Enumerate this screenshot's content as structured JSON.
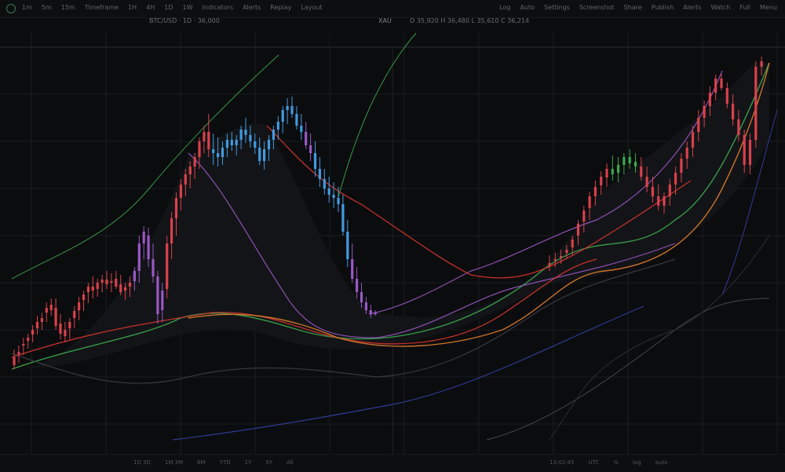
{
  "toolbar": {
    "left_items": [
      "1m",
      "5m",
      "15m",
      "Timeframe",
      "1H",
      "4H",
      "1D",
      "1W",
      "Indicators",
      "Alerts",
      "Replay",
      "Layout"
    ],
    "right_items": [
      "Log",
      "Auto",
      "Settings",
      "Screenshot",
      "Share",
      "Publish",
      "Alerts",
      "Watch",
      "Full",
      "Menu"
    ]
  },
  "header": {
    "symbol": "BTC/USD · 1D · 36,000",
    "ticker": "XAU",
    "info": "O 35,920  H 36,480  L 35,610  C 36,214"
  },
  "bottom_bar": {
    "left_items": [
      "1D 5D",
      "1M 3M",
      "6M",
      "YTD",
      "1Y",
      "5Y",
      "All"
    ],
    "right_items": [
      "13:02:45",
      "UTC",
      "%",
      "log",
      "auto"
    ]
  },
  "colors": {
    "up": "#d9414b",
    "down": "#3f9be0",
    "purple": "#9a58c6",
    "green": "#3aa84e",
    "orange": "#e07d2a",
    "red_ma": "#d8352f",
    "blue_band": "#3440a4",
    "grid": "#1a1c20"
  },
  "chart_data": {
    "type": "line",
    "candles": [
      [
        0,
        455,
        470,
        445,
        465,
        "up"
      ],
      [
        1,
        448,
        462,
        440,
        452,
        "up"
      ],
      [
        2,
        440,
        452,
        430,
        438,
        "up"
      ],
      [
        3,
        430,
        444,
        425,
        434,
        "up"
      ],
      [
        4,
        420,
        436,
        414,
        426,
        "up"
      ],
      [
        5,
        410,
        426,
        402,
        418,
        "up"
      ],
      [
        6,
        405,
        420,
        398,
        410,
        "up"
      ],
      [
        7,
        398,
        410,
        385,
        392,
        "up"
      ],
      [
        8,
        388,
        402,
        380,
        395,
        "up"
      ],
      [
        9,
        392,
        420,
        380,
        415,
        "up"
      ],
      [
        10,
        412,
        432,
        400,
        425,
        "up"
      ],
      [
        11,
        420,
        436,
        410,
        428,
        "up"
      ],
      [
        12,
        418,
        432,
        405,
        410,
        "up"
      ],
      [
        13,
        405,
        418,
        390,
        396,
        "up"
      ],
      [
        14,
        395,
        408,
        378,
        385,
        "up"
      ],
      [
        15,
        382,
        396,
        370,
        375,
        "up"
      ],
      [
        16,
        372,
        386,
        360,
        365,
        "up"
      ],
      [
        17,
        365,
        380,
        352,
        370,
        "up"
      ],
      [
        18,
        368,
        378,
        355,
        360,
        "up"
      ],
      [
        19,
        360,
        372,
        350,
        356,
        "up"
      ],
      [
        20,
        356,
        368,
        345,
        362,
        "up"
      ],
      [
        21,
        360,
        372,
        348,
        358,
        "up"
      ],
      [
        22,
        355,
        368,
        345,
        365,
        "up"
      ],
      [
        23,
        362,
        376,
        350,
        372,
        "up"
      ],
      [
        24,
        370,
        382,
        360,
        366,
        "up"
      ],
      [
        25,
        365,
        378,
        352,
        360,
        "up"
      ],
      [
        26,
        358,
        370,
        340,
        345,
        "purple"
      ],
      [
        27,
        345,
        360,
        300,
        310,
        "purple"
      ],
      [
        28,
        310,
        330,
        288,
        295,
        "purple"
      ],
      [
        29,
        300,
        340,
        290,
        330,
        "purple"
      ],
      [
        30,
        330,
        360,
        310,
        352,
        "purple"
      ],
      [
        31,
        352,
        412,
        345,
        400,
        "purple"
      ],
      [
        32,
        395,
        410,
        360,
        370,
        "purple"
      ],
      [
        33,
        368,
        380,
        300,
        310,
        "up"
      ],
      [
        34,
        310,
        330,
        270,
        278,
        "up"
      ],
      [
        35,
        278,
        300,
        245,
        252,
        "up"
      ],
      [
        36,
        252,
        268,
        228,
        235,
        "up"
      ],
      [
        37,
        235,
        250,
        215,
        222,
        "up"
      ],
      [
        38,
        222,
        240,
        205,
        212,
        "up"
      ],
      [
        39,
        212,
        228,
        195,
        200,
        "up"
      ],
      [
        40,
        200,
        215,
        175,
        180,
        "up"
      ],
      [
        41,
        180,
        195,
        160,
        168,
        "up"
      ],
      [
        42,
        168,
        200,
        145,
        190,
        "up"
      ],
      [
        43,
        190,
        210,
        170,
        195,
        "down"
      ],
      [
        44,
        195,
        212,
        175,
        200,
        "down"
      ],
      [
        45,
        200,
        210,
        180,
        188,
        "down"
      ],
      [
        46,
        188,
        200,
        170,
        178,
        "down"
      ],
      [
        47,
        178,
        192,
        168,
        185,
        "down"
      ],
      [
        48,
        185,
        198,
        172,
        178,
        "down"
      ],
      [
        49,
        178,
        190,
        160,
        165,
        "down"
      ],
      [
        50,
        165,
        182,
        150,
        172,
        "down"
      ],
      [
        51,
        172,
        188,
        160,
        180,
        "down"
      ],
      [
        52,
        180,
        196,
        170,
        188,
        "down"
      ],
      [
        53,
        188,
        210,
        175,
        205,
        "down"
      ],
      [
        54,
        205,
        216,
        180,
        190,
        "down"
      ],
      [
        55,
        190,
        205,
        172,
        178,
        "down"
      ],
      [
        56,
        178,
        190,
        160,
        165,
        "down"
      ],
      [
        57,
        165,
        178,
        148,
        155,
        "down"
      ],
      [
        58,
        155,
        170,
        135,
        140,
        "down"
      ],
      [
        59,
        140,
        158,
        125,
        135,
        "down"
      ],
      [
        60,
        135,
        150,
        123,
        145,
        "down"
      ],
      [
        61,
        145,
        165,
        135,
        160,
        "down"
      ],
      [
        62,
        160,
        178,
        145,
        168,
        "down"
      ],
      [
        63,
        168,
        190,
        155,
        185,
        "purple"
      ],
      [
        64,
        185,
        205,
        170,
        195,
        "purple"
      ],
      [
        65,
        195,
        225,
        180,
        215,
        "down"
      ],
      [
        66,
        215,
        238,
        200,
        228,
        "down"
      ],
      [
        67,
        228,
        248,
        215,
        240,
        "down"
      ],
      [
        68,
        240,
        258,
        225,
        248,
        "down"
      ],
      [
        69,
        248,
        265,
        232,
        252,
        "down"
      ],
      [
        70,
        252,
        270,
        238,
        260,
        "down"
      ],
      [
        71,
        260,
        300,
        248,
        295,
        "down"
      ],
      [
        72,
        295,
        340,
        280,
        330,
        "down"
      ],
      [
        73,
        330,
        360,
        310,
        355,
        "purple"
      ],
      [
        74,
        355,
        380,
        340,
        372,
        "purple"
      ],
      [
        75,
        372,
        392,
        360,
        385,
        "purple"
      ],
      [
        76,
        385,
        400,
        378,
        395,
        "purple"
      ],
      [
        77,
        395,
        405,
        388,
        400,
        "purple"
      ],
      [
        78,
        400,
        402,
        395,
        398,
        "purple"
      ],
      [
        79,
        335,
        345,
        325,
        338,
        "up"
      ],
      [
        80,
        330,
        340,
        322,
        332,
        "up"
      ],
      [
        81,
        326,
        336,
        318,
        328,
        "up"
      ],
      [
        82,
        322,
        330,
        312,
        318,
        "up"
      ],
      [
        83,
        315,
        325,
        300,
        305,
        "up"
      ],
      [
        84,
        300,
        312,
        280,
        285,
        "up"
      ],
      [
        85,
        282,
        296,
        262,
        268,
        "up"
      ],
      [
        86,
        265,
        280,
        244,
        250,
        "up"
      ],
      [
        87,
        250,
        262,
        230,
        238,
        "up"
      ],
      [
        88,
        236,
        248,
        218,
        225,
        "up"
      ],
      [
        89,
        226,
        238,
        208,
        215,
        "up"
      ],
      [
        90,
        215,
        230,
        198,
        222,
        "green"
      ],
      [
        91,
        220,
        232,
        200,
        210,
        "green"
      ],
      [
        92,
        210,
        222,
        195,
        200,
        "green"
      ],
      [
        93,
        200,
        215,
        190,
        208,
        "green"
      ],
      [
        94,
        206,
        220,
        195,
        212,
        "green"
      ],
      [
        95,
        212,
        230,
        200,
        225,
        "up"
      ],
      [
        96,
        225,
        245,
        212,
        238,
        "up"
      ],
      [
        97,
        238,
        258,
        225,
        250,
        "up"
      ],
      [
        98,
        250,
        268,
        235,
        262,
        "up"
      ],
      [
        99,
        262,
        272,
        245,
        250,
        "up"
      ],
      [
        100,
        250,
        262,
        228,
        235,
        "up"
      ],
      [
        101,
        235,
        248,
        212,
        220,
        "up"
      ],
      [
        102,
        220,
        232,
        195,
        202,
        "up"
      ],
      [
        103,
        202,
        215,
        180,
        188,
        "up"
      ],
      [
        104,
        188,
        200,
        160,
        168,
        "up"
      ],
      [
        105,
        168,
        180,
        140,
        150,
        "up"
      ],
      [
        106,
        150,
        162,
        128,
        135,
        "up"
      ],
      [
        107,
        135,
        148,
        110,
        118,
        "up"
      ],
      [
        108,
        118,
        128,
        95,
        100,
        "up"
      ],
      [
        109,
        100,
        115,
        94,
        112,
        "up"
      ],
      [
        110,
        112,
        138,
        105,
        132,
        "up"
      ],
      [
        111,
        132,
        160,
        120,
        152,
        "up"
      ],
      [
        112,
        152,
        180,
        140,
        172,
        "up"
      ],
      [
        113,
        172,
        220,
        165,
        210,
        "up"
      ],
      [
        114,
        210,
        222,
        170,
        178,
        "up"
      ],
      [
        115,
        178,
        188,
        78,
        85,
        "up"
      ],
      [
        116,
        85,
        96,
        72,
        78,
        "up"
      ]
    ],
    "line_series_colors": [
      "#3aa84e",
      "#9a58c6",
      "#d8352f",
      "#e07d2a",
      "#3440a4",
      "#6b6f76"
    ],
    "grid": true,
    "legend": "none"
  }
}
